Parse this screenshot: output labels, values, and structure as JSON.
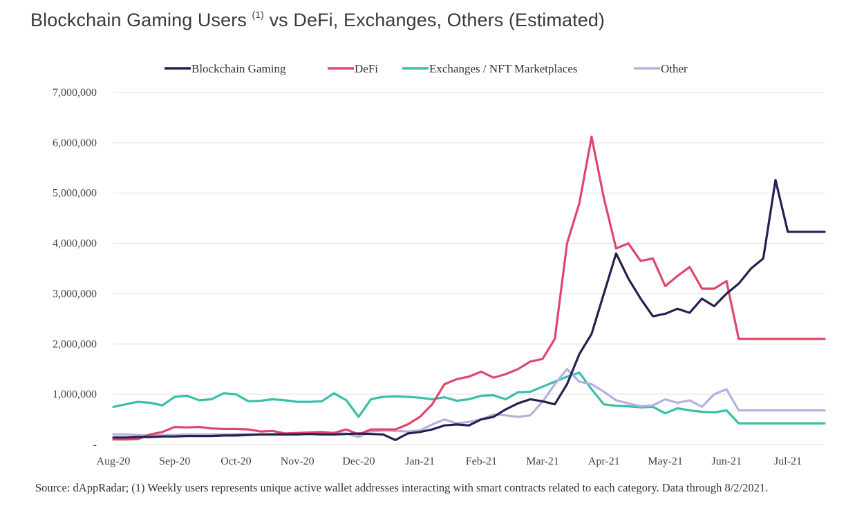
{
  "title": {
    "main": "Blockchain Gaming Users",
    "superscript": "(1)",
    "rest": "vs DeFi, Exchanges, Others (Estimated)"
  },
  "source_note": "Source: dAppRadar; (1) Weekly users represents unique active wallet addresses interacting with smart contracts related to each category. Data through 8/2/2021.",
  "chart_data": {
    "type": "line",
    "title": "Blockchain Gaming Users (1) vs DeFi, Exchanges, Others (Estimated)",
    "xlabel": "",
    "ylabel": "",
    "ylim": [
      0,
      7000000
    ],
    "yticks": [
      0,
      1000000,
      2000000,
      3000000,
      4000000,
      5000000,
      6000000,
      7000000
    ],
    "ytick_labels": [
      "-",
      "1,000,000",
      "2,000,000",
      "3,000,000",
      "4,000,000",
      "5,000,000",
      "6,000,000",
      "7,000,000"
    ],
    "xtick_labels": [
      "Aug-20",
      "Sep-20",
      "Oct-20",
      "Nov-20",
      "Dec-20",
      "Jan-21",
      "Feb-21",
      "Mar-21",
      "Apr-21",
      "May-21",
      "Jun-21",
      "Jul-21"
    ],
    "grid": "horizontal",
    "legend_position": "top",
    "x": [
      0,
      1,
      2,
      3,
      4,
      5,
      6,
      7,
      8,
      9,
      10,
      11,
      12,
      13,
      14,
      15,
      16,
      17,
      18,
      19,
      20,
      21,
      22,
      23,
      24,
      25,
      26,
      27,
      28,
      29,
      30,
      31,
      32,
      33,
      34,
      35,
      36,
      37,
      38,
      39,
      40,
      41,
      42,
      43,
      44,
      45,
      46,
      47,
      48,
      49,
      50,
      51,
      52,
      53,
      54,
      55,
      56,
      57,
      58
    ],
    "series": [
      {
        "name": "Blockchain Gaming",
        "color": "#232150",
        "values": [
          140000,
          140000,
          150000,
          150000,
          160000,
          160000,
          170000,
          170000,
          170000,
          180000,
          180000,
          190000,
          200000,
          200000,
          200000,
          200000,
          210000,
          200000,
          200000,
          210000,
          220000,
          210000,
          200000,
          90000,
          220000,
          250000,
          300000,
          380000,
          400000,
          380000,
          500000,
          550000,
          700000,
          820000,
          900000,
          860000,
          800000,
          1200000,
          1800000,
          2200000,
          3000000,
          3800000,
          3300000,
          2900000,
          2550000,
          2600000,
          2700000,
          2620000,
          2900000,
          2750000,
          3000000,
          3200000,
          3500000,
          3700000,
          5260000,
          4230000,
          4230000,
          4230000,
          4230000
        ]
      },
      {
        "name": "DeFi",
        "color": "#e0466a",
        "values": [
          100000,
          100000,
          110000,
          200000,
          250000,
          350000,
          340000,
          350000,
          320000,
          310000,
          310000,
          300000,
          260000,
          270000,
          220000,
          230000,
          240000,
          250000,
          230000,
          300000,
          200000,
          300000,
          300000,
          300000,
          400000,
          550000,
          800000,
          1200000,
          1300000,
          1350000,
          1450000,
          1330000,
          1400000,
          1500000,
          1650000,
          1700000,
          2100000,
          4000000,
          4800000,
          6120000,
          4900000,
          3900000,
          4000000,
          3650000,
          3700000,
          3150000,
          3350000,
          3530000,
          3100000,
          3100000,
          3250000,
          2100000,
          2100000,
          2100000,
          2100000,
          2100000,
          2100000,
          2100000,
          2100000
        ]
      },
      {
        "name": "Exchanges / NFT Marketplaces",
        "color": "#37bfa7",
        "values": [
          750000,
          800000,
          850000,
          830000,
          780000,
          950000,
          970000,
          880000,
          900000,
          1020000,
          1000000,
          860000,
          870000,
          900000,
          880000,
          850000,
          850000,
          860000,
          1020000,
          880000,
          550000,
          900000,
          950000,
          960000,
          950000,
          930000,
          900000,
          940000,
          870000,
          900000,
          970000,
          980000,
          900000,
          1040000,
          1050000,
          1150000,
          1250000,
          1350000,
          1430000,
          1100000,
          800000,
          770000,
          760000,
          740000,
          750000,
          620000,
          720000,
          680000,
          650000,
          640000,
          680000,
          420000,
          420000,
          420000,
          420000,
          420000,
          420000,
          420000,
          420000
        ]
      },
      {
        "name": "Other",
        "color": "#b5b0dd",
        "values": [
          200000,
          200000,
          190000,
          180000,
          190000,
          190000,
          200000,
          200000,
          200000,
          200000,
          210000,
          210000,
          200000,
          210000,
          200000,
          210000,
          220000,
          220000,
          220000,
          220000,
          150000,
          260000,
          280000,
          270000,
          260000,
          280000,
          400000,
          500000,
          420000,
          450000,
          500000,
          600000,
          580000,
          550000,
          580000,
          850000,
          1200000,
          1500000,
          1250000,
          1200000,
          1050000,
          880000,
          820000,
          760000,
          780000,
          900000,
          830000,
          880000,
          750000,
          1000000,
          1100000,
          680000,
          680000,
          680000,
          680000,
          680000,
          680000,
          680000,
          680000
        ]
      }
    ]
  }
}
